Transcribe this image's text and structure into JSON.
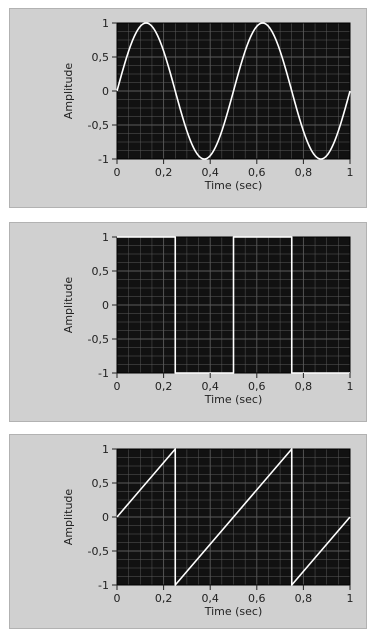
{
  "chart_data": [
    {
      "type": "line",
      "xlabel": "Time (sec)",
      "ylabel": "Amplitude",
      "xlim": [
        0,
        1
      ],
      "ylim": [
        -1,
        1
      ],
      "x_ticks": [
        "0",
        "0,2",
        "0,4",
        "0,6",
        "0,8",
        "1"
      ],
      "y_ticks": [
        "1",
        "0,5",
        "0",
        "-0,5",
        "-1"
      ],
      "grid": true,
      "series": [
        {
          "waveform": "sine",
          "x": [
            0,
            0.125,
            0.25,
            0.375,
            0.5,
            0.625,
            0.75,
            0.875,
            1
          ],
          "y": [
            0,
            1,
            0,
            -1,
            0,
            1,
            0,
            -1,
            0
          ]
        }
      ]
    },
    {
      "type": "line",
      "xlabel": "Time (sec)",
      "ylabel": "Amplitude",
      "xlim": [
        0,
        1
      ],
      "ylim": [
        -1,
        1
      ],
      "x_ticks": [
        "0",
        "0,2",
        "0,4",
        "0,6",
        "0,8",
        "1"
      ],
      "y_ticks": [
        "1",
        "0,5",
        "0",
        "-0,5",
        "-1"
      ],
      "grid": true,
      "series": [
        {
          "waveform": "square",
          "x": [
            0,
            0.25,
            0.25,
            0.5,
            0.5,
            0.75,
            0.75,
            1
          ],
          "y": [
            1,
            1,
            -1,
            -1,
            1,
            1,
            -1,
            -1
          ]
        }
      ]
    },
    {
      "type": "line",
      "xlabel": "Time (sec)",
      "ylabel": "Amplitude",
      "xlim": [
        0,
        1
      ],
      "ylim": [
        -1,
        1
      ],
      "x_ticks": [
        "0",
        "0,2",
        "0,4",
        "0,6",
        "0,8",
        "1"
      ],
      "y_ticks": [
        "1",
        "0,5",
        "0",
        "-0,5",
        "-1"
      ],
      "grid": true,
      "series": [
        {
          "waveform": "sawtooth",
          "x": [
            0,
            0.25,
            0.25,
            0.75,
            0.75,
            1
          ],
          "y": [
            0,
            1,
            -1,
            1,
            -1,
            0
          ]
        }
      ]
    }
  ],
  "colors": {
    "plot_background": "#111111",
    "grid": "#5a5a5a",
    "trace": "#ffffff",
    "panel": "#d0d0d0"
  }
}
